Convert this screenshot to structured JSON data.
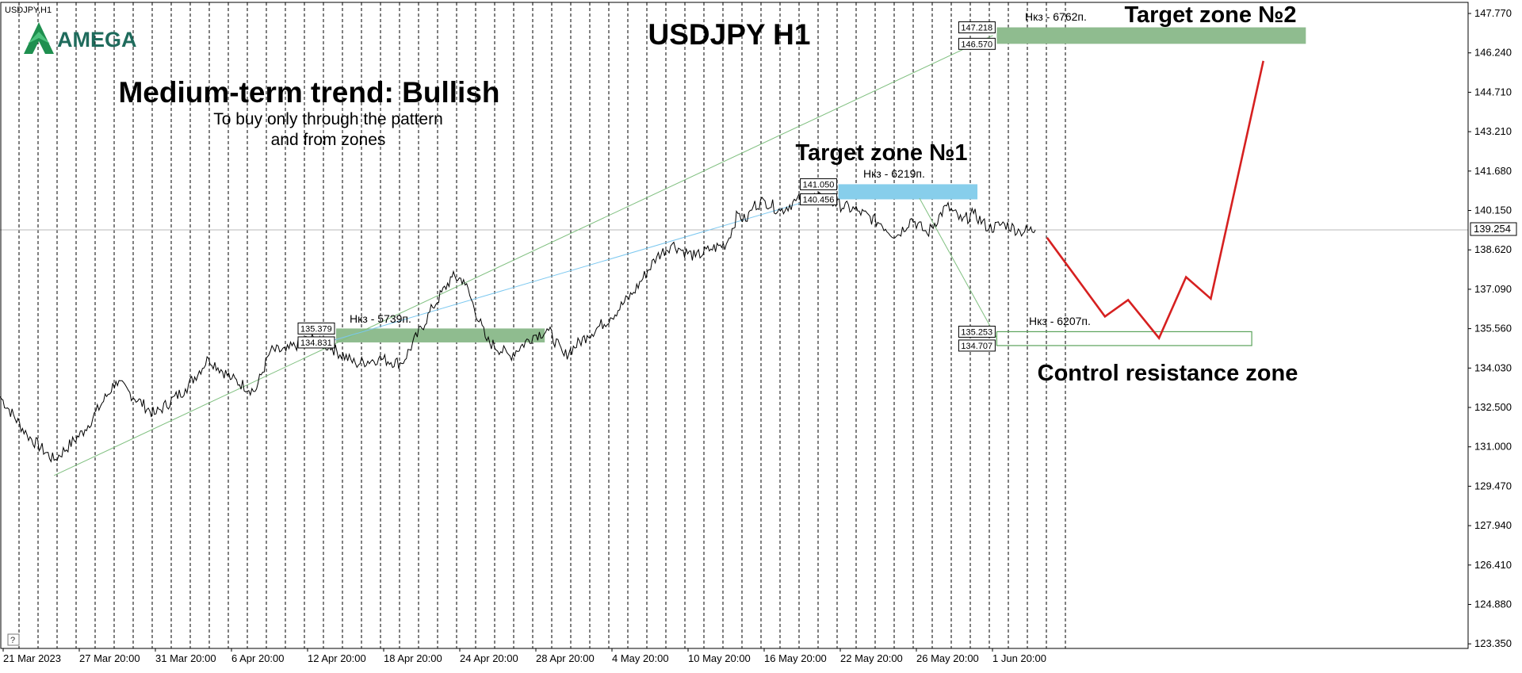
{
  "chart_data": {
    "type": "line",
    "symbol_label": "USDJPY,H1",
    "title": "USDJPY H1",
    "subtitle": "Medium-term trend: Bullish",
    "note_lines": [
      "To buy only through the pattern",
      "and from zones"
    ],
    "logo_text": "AMEGA",
    "current_price": "139.254",
    "ylim": [
      122.8,
      148.2
    ],
    "y_ticks": [
      "147.770",
      "146.240",
      "144.710",
      "143.210",
      "141.680",
      "140.150",
      "138.620",
      "137.090",
      "135.560",
      "134.030",
      "132.500",
      "131.000",
      "129.470",
      "127.940",
      "126.410",
      "124.880",
      "123.350"
    ],
    "x_ticks": [
      "21 Mar 2023",
      "27 Mar 20:00",
      "31 Mar 20:00",
      "6 Apr 20:00",
      "12 Apr 20:00",
      "18 Apr 20:00",
      "24 Apr 20:00",
      "28 Apr 20:00",
      "4 May 20:00",
      "10 May 20:00",
      "16 May 20:00",
      "22 May 20:00",
      "26 May 20:00",
      "1 Jun 20:00"
    ],
    "x_range": [
      0,
      1900
    ],
    "price_series": {
      "name": "USDJPY H1",
      "x": [
        0,
        35,
        70,
        110,
        150,
        200,
        240,
        270,
        300,
        330,
        350,
        370,
        400,
        430,
        460,
        490,
        520,
        560,
        585,
        600,
        630,
        660,
        690,
        710,
        730,
        760,
        790,
        820,
        850,
        870,
        880,
        900,
        920,
        940,
        955,
        965,
        975,
        990,
        1010,
        1030,
        1050,
        1080,
        1110,
        1140,
        1160,
        1180,
        1200,
        1225,
        1245,
        1260,
        1280,
        1300,
        1320,
        1340
      ],
      "y": [
        132.7,
        131.2,
        130.2,
        131.4,
        133.3,
        132.0,
        133.0,
        134.2,
        133.4,
        132.9,
        134.5,
        134.5,
        135.0,
        134.6,
        134.0,
        134.2,
        134.0,
        136.2,
        137.4,
        137.3,
        134.9,
        134.3,
        135.1,
        135.3,
        134.3,
        135.1,
        135.8,
        136.8,
        138.2,
        138.7,
        138.5,
        138.2,
        138.5,
        138.7,
        139.9,
        139.6,
        140.2,
        140.4,
        140.0,
        140.4,
        140.6,
        140.3,
        140.0,
        139.5,
        139.0,
        139.7,
        139.1,
        140.2,
        139.6,
        139.9,
        139.3,
        139.5,
        139.2,
        139.254
      ]
    },
    "projection": {
      "name": "forecast path",
      "x": [
        1355,
        1430,
        1460,
        1500,
        1535,
        1567,
        1635
      ],
      "y": [
        138.95,
        135.85,
        136.5,
        135.0,
        137.4,
        136.55,
        145.9
      ]
    },
    "zones": [
      {
        "name": "Target zone №2",
        "upper": "147.218",
        "lower": "146.570",
        "hi": 147.218,
        "lo": 146.57,
        "x1": 1290,
        "x2": 1690,
        "style": "filled",
        "color": "#8fbc8f",
        "note": "Нкз - 6762п.",
        "title": "Target zone №2"
      },
      {
        "name": "Target zone №1",
        "upper": "141.050",
        "lower": "140.456",
        "hi": 141.05,
        "lo": 140.456,
        "x1": 1085,
        "x2": 1265,
        "style": "filled",
        "color": "#87ceeb",
        "note": "Нкз - 6219п.",
        "title": "Target zone №1"
      },
      {
        "name": "Control resistance zone",
        "upper": "135.253",
        "lower": "134.707",
        "hi": 135.253,
        "lo": 134.707,
        "x1": 1290,
        "x2": 1620,
        "style": "outline",
        "color": "#5aa35a",
        "note": "Нкз - 6207п.",
        "title": "Control resistance zone"
      },
      {
        "name": "Нкз zone",
        "upper": "135.379",
        "lower": "134.831",
        "hi": 135.379,
        "lo": 134.831,
        "x1": 435,
        "x2": 705,
        "style": "filled",
        "color": "#8fbc8f",
        "note": "Нкз - 5739п.",
        "title": ""
      }
    ],
    "guide_lines": [
      {
        "color": "#7fbf7f",
        "x": [
          70,
          1285
        ],
        "y": [
          129.6,
          146.9
        ]
      },
      {
        "color": "#7cc8f0",
        "x": [
          430,
          1080
        ],
        "y": [
          134.9,
          140.7
        ]
      },
      {
        "color": "#7fbf7f",
        "x": [
          1190,
          1290
        ],
        "y": [
          140.5,
          135.0
        ]
      }
    ],
    "grid": "vertical dashed",
    "colors": {
      "price": "#000000",
      "projection": "#d62020",
      "grid": "#000000"
    }
  }
}
